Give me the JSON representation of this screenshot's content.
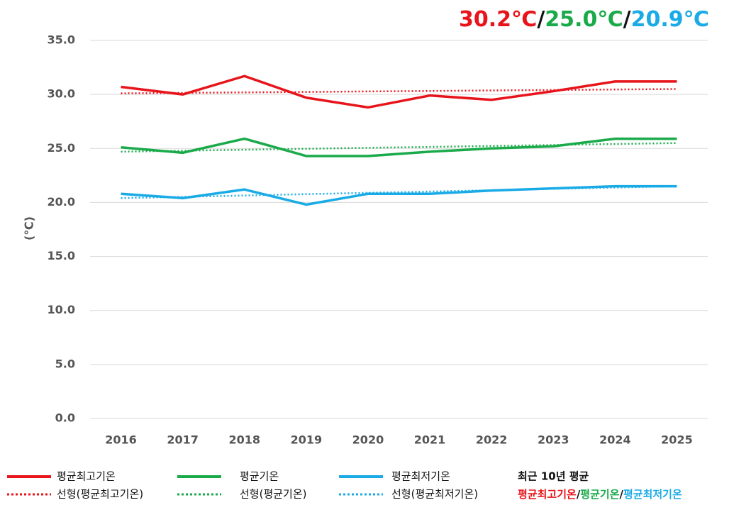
{
  "chart_data": {
    "type": "line",
    "ylabel": "(℃)",
    "categories": [
      "2016",
      "2017",
      "2018",
      "2019",
      "2020",
      "2021",
      "2022",
      "2023",
      "2024",
      "2025"
    ],
    "series": [
      {
        "name": "평균최고기온",
        "color": "#e8141b",
        "style": "solid",
        "values": [
          30.7,
          30.0,
          31.7,
          29.7,
          28.8,
          29.9,
          29.5,
          30.3,
          31.2,
          31.2
        ]
      },
      {
        "name": "평균기온",
        "color": "#1aaa4a",
        "style": "solid",
        "values": [
          25.1,
          24.6,
          25.9,
          24.3,
          24.3,
          24.7,
          25.0,
          25.2,
          25.9,
          25.9
        ]
      },
      {
        "name": "평균최저기온",
        "color": "#1aabe6",
        "style": "solid",
        "values": [
          20.8,
          20.4,
          21.2,
          19.8,
          20.8,
          20.8,
          21.1,
          21.3,
          21.5,
          21.5
        ]
      },
      {
        "name": "선형(평균최고기온)",
        "color": "#e8141b",
        "style": "dotted",
        "values": [
          30.1,
          30.14,
          30.19,
          30.23,
          30.28,
          30.32,
          30.37,
          30.41,
          30.46,
          30.5
        ]
      },
      {
        "name": "선형(평균기온)",
        "color": "#1aaa4a",
        "style": "dotted",
        "values": [
          24.7,
          24.79,
          24.88,
          24.97,
          25.06,
          25.14,
          25.23,
          25.32,
          25.41,
          25.5
        ]
      },
      {
        "name": "선형(평균최저기온)",
        "color": "#1aabe6",
        "style": "dotted",
        "values": [
          20.4,
          20.52,
          20.64,
          20.77,
          20.89,
          21.01,
          21.13,
          21.26,
          21.38,
          21.5
        ]
      }
    ],
    "ylim": [
      0,
      35
    ],
    "yticks": [
      {
        "value": 0,
        "label": "0.0"
      },
      {
        "value": 5,
        "label": "5.0"
      },
      {
        "value": 10,
        "label": "10.0"
      },
      {
        "value": 15,
        "label": "15.0"
      },
      {
        "value": 20,
        "label": "20.0"
      },
      {
        "value": 25,
        "label": "25.0"
      },
      {
        "value": 30,
        "label": "30.0"
      },
      {
        "value": 35,
        "label": "35.0"
      }
    ],
    "grid": true,
    "header": [
      {
        "text": "30.2℃",
        "color": "#e8141b"
      },
      {
        "text": "/",
        "color": "#111111"
      },
      {
        "text": "25.0℃",
        "color": "#1aaa4a"
      },
      {
        "text": "/",
        "color": "#111111"
      },
      {
        "text": "20.9℃",
        "color": "#1aabe6"
      }
    ],
    "legend_note": {
      "title": "최근 10년 평균",
      "parts": [
        {
          "text": "평균최고기온",
          "color": "#e8141b"
        },
        {
          "text": "/",
          "color": "#111111"
        },
        {
          "text": "평균기온",
          "color": "#1aaa4a"
        },
        {
          "text": "/",
          "color": "#111111"
        },
        {
          "text": "평균최저기온",
          "color": "#1aabe6"
        }
      ]
    }
  }
}
